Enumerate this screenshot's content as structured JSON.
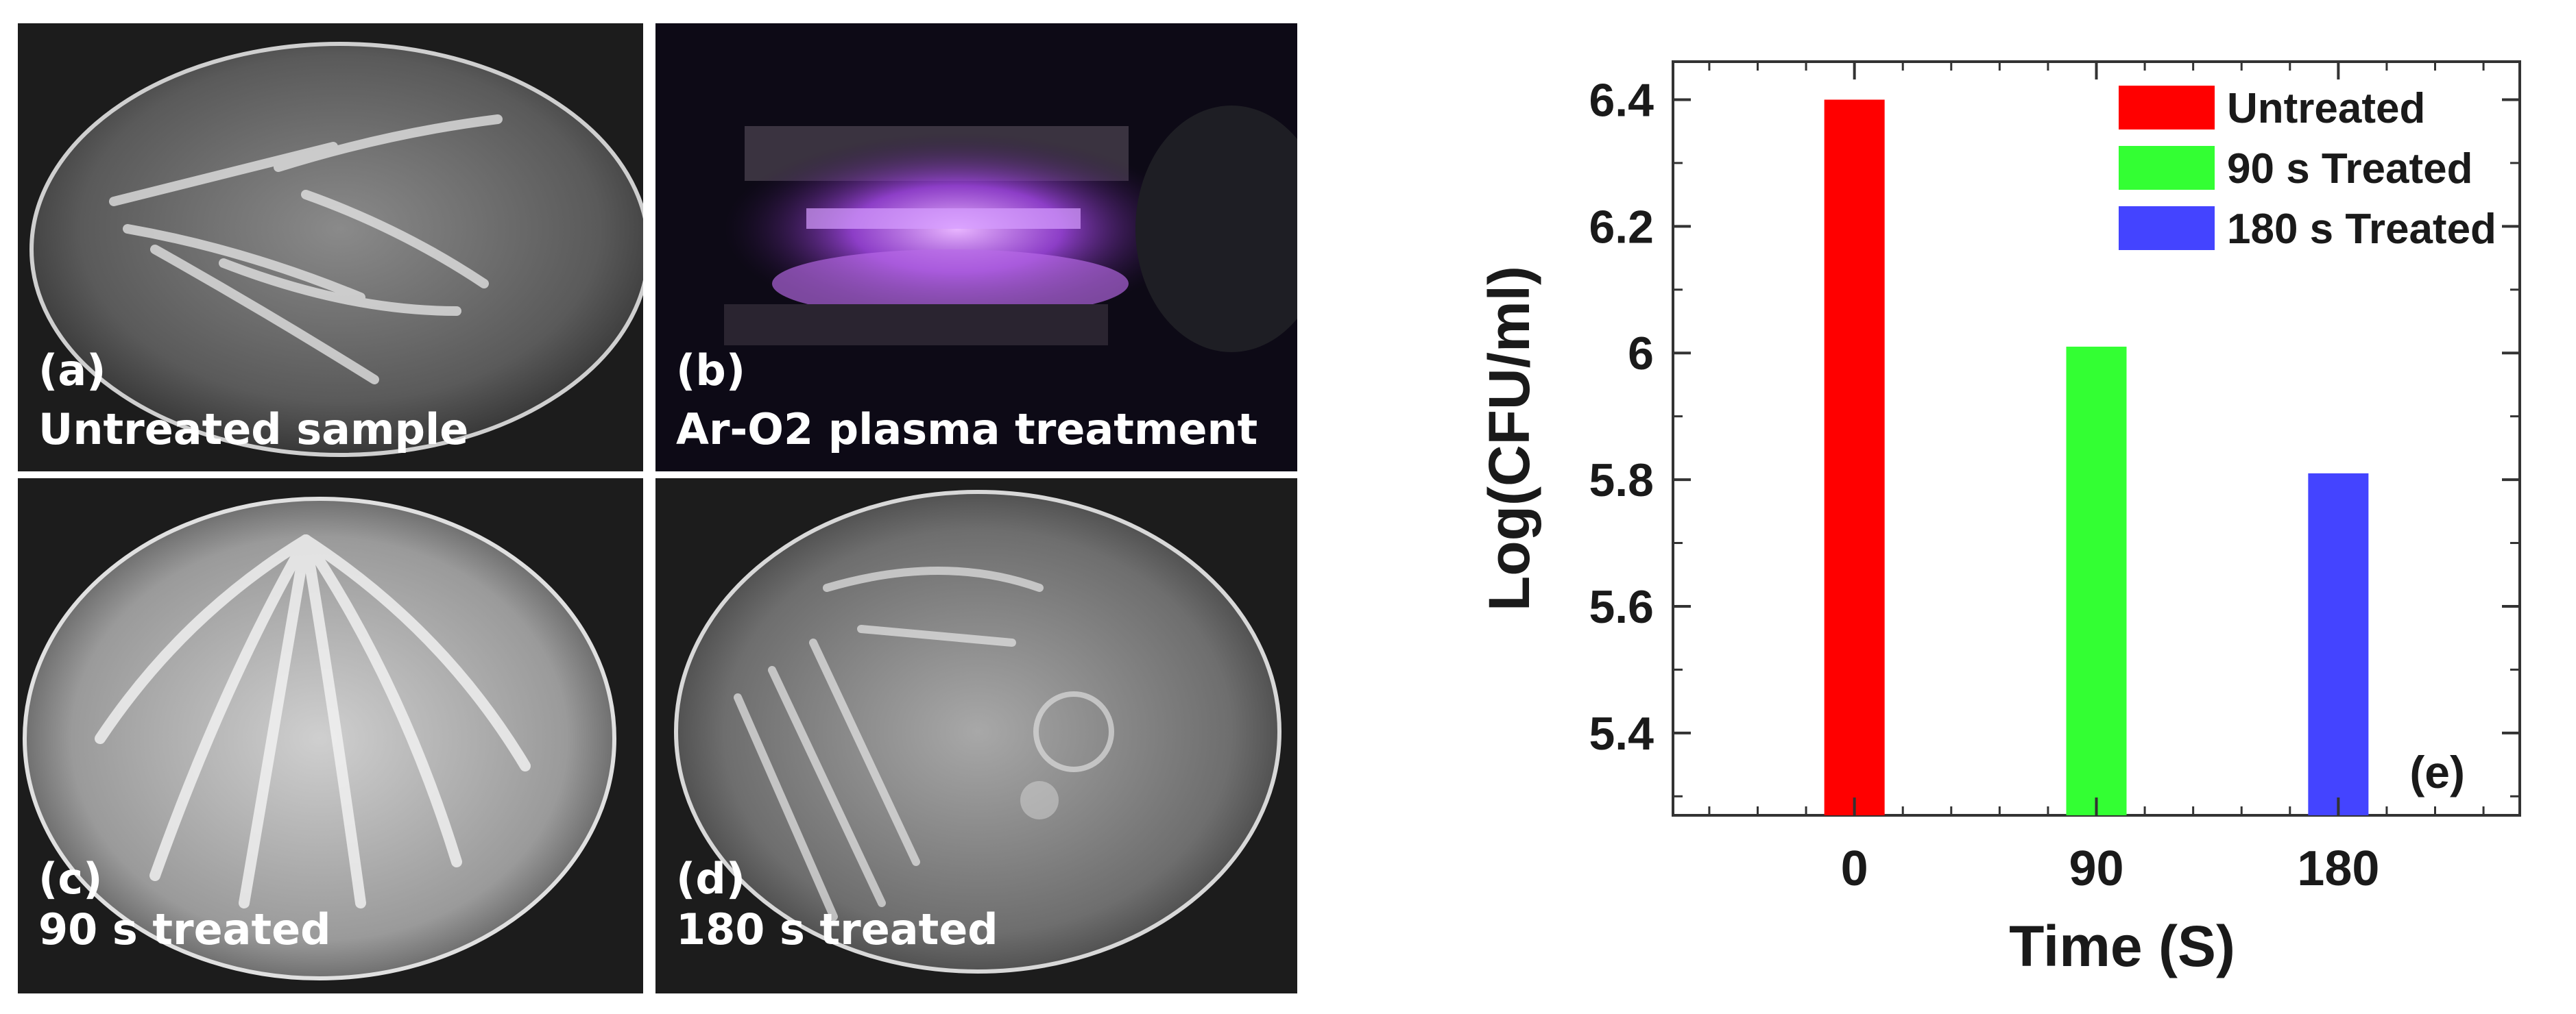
{
  "panels": {
    "a": {
      "letter": "(a)",
      "caption": "Untreated sample"
    },
    "b": {
      "letter": "(b)",
      "caption": "Ar-O2 plasma treatment"
    },
    "c": {
      "letter": "(c)",
      "caption": "90 s treated"
    },
    "d": {
      "letter": "(d)",
      "caption": "180 s treated"
    }
  },
  "chart_data": {
    "type": "bar",
    "panel_label": "(e)",
    "categories": [
      "0",
      "90",
      "180"
    ],
    "xlabel": "Time (S)",
    "ylabel": "Log(CFU/ml)",
    "ylim": [
      5.27,
      6.46
    ],
    "yticks": [
      "5.4",
      "5.6",
      "5.8",
      "6",
      "6.2",
      "6.4"
    ],
    "legend_position": "top-right",
    "grid": false,
    "series": [
      {
        "name": "Untreated",
        "category": "0",
        "value": 6.4,
        "color": "#ff0000"
      },
      {
        "name": "90 s Treated",
        "category": "90",
        "value": 6.01,
        "color": "#33ff33"
      },
      {
        "name": "180 s Treated",
        "category": "180",
        "value": 5.81,
        "color": "#4444ff"
      }
    ]
  }
}
